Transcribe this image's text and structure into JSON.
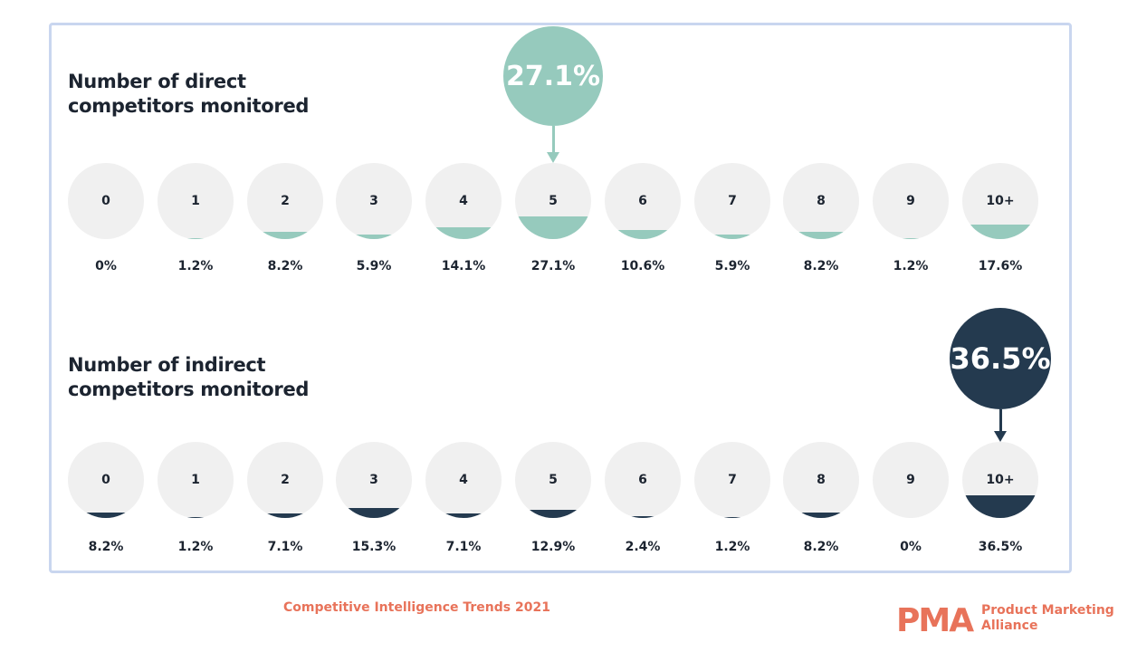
{
  "colors": {
    "direct_fill": "#96cabd",
    "indirect_fill": "#243a4f",
    "circle_bg": "#f0f0f0",
    "accent": "#e8735a",
    "frame": "#c9d6ef"
  },
  "chart_data": [
    {
      "type": "bar",
      "title": [
        "Number of direct",
        "competitors monitored"
      ],
      "categories": [
        "0",
        "1",
        "2",
        "3",
        "4",
        "5",
        "6",
        "7",
        "8",
        "9",
        "10+"
      ],
      "values": [
        0,
        1.2,
        8.2,
        5.9,
        14.1,
        27.1,
        10.6,
        5.9,
        8.2,
        1.2,
        17.6
      ],
      "value_labels": [
        "0%",
        "1.2%",
        "8.2%",
        "5.9%",
        "14.1%",
        "27.1%",
        "10.6%",
        "5.9%",
        "8.2%",
        "1.2%",
        "17.6%"
      ],
      "highlight": {
        "category": "5",
        "label": "27.1%"
      },
      "encoding": "circle fill level"
    },
    {
      "type": "bar",
      "title": [
        "Number of indirect",
        "competitors monitored"
      ],
      "categories": [
        "0",
        "1",
        "2",
        "3",
        "4",
        "5",
        "6",
        "7",
        "8",
        "9",
        "10+"
      ],
      "values": [
        8.2,
        1.2,
        7.1,
        15.3,
        7.1,
        12.9,
        2.4,
        1.2,
        8.2,
        0,
        36.5
      ],
      "value_labels": [
        "8.2%",
        "1.2%",
        "7.1%",
        "15.3%",
        "7.1%",
        "12.9%",
        "2.4%",
        "1.2%",
        "8.2%",
        "0%",
        "36.5%"
      ],
      "highlight": {
        "category": "10+",
        "label": "36.5%"
      },
      "encoding": "circle fill level"
    }
  ],
  "footer": {
    "report_title": "Competitive Intelligence Trends 2021",
    "logo_mark": "PMA",
    "brand_line1": "Product Marketing",
    "brand_line2": "Alliance"
  }
}
